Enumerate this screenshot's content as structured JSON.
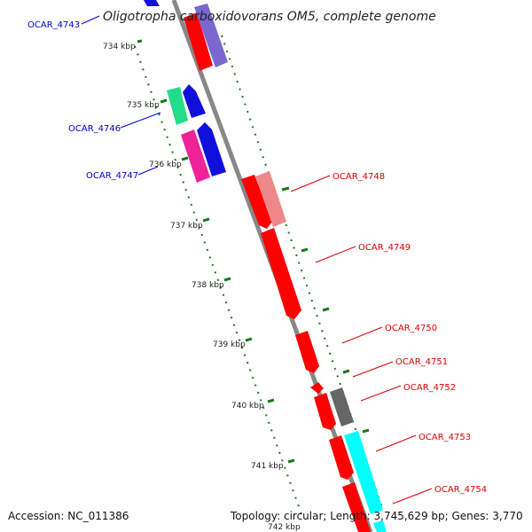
{
  "header": {
    "title": "Oligotropha carboxidovorans OM5, complete genome"
  },
  "footer": {
    "accession": "Accession: NC_011386",
    "summary": "Topology: circular; Length: 3,745,629 bp; Genes: 3,770"
  },
  "colors": {
    "backbone": "#888888",
    "tick": "#1a7a1a",
    "forward_label": "#0000cc",
    "reverse_label": "#dd0000"
  },
  "ticks": [
    {
      "label": "734 kbp"
    },
    {
      "label": "735 kbp"
    },
    {
      "label": "736 kbp"
    },
    {
      "label": "737 kbp"
    },
    {
      "label": "738 kbp"
    },
    {
      "label": "739 kbp"
    },
    {
      "label": "740 kbp"
    },
    {
      "label": "741 kbp"
    },
    {
      "label": "742 kbp"
    }
  ],
  "gene_labels": [
    {
      "text": "OCAR_4743",
      "strand": "forward"
    },
    {
      "text": "OCAR_4746",
      "strand": "forward"
    },
    {
      "text": "OCAR_4747",
      "strand": "forward"
    },
    {
      "text": "OCAR_4748",
      "strand": "reverse"
    },
    {
      "text": "OCAR_4749",
      "strand": "reverse"
    },
    {
      "text": "OCAR_4750",
      "strand": "reverse"
    },
    {
      "text": "OCAR_4751",
      "strand": "reverse"
    },
    {
      "text": "OCAR_4752",
      "strand": "reverse"
    },
    {
      "text": "OCAR_4753",
      "strand": "reverse"
    },
    {
      "text": "OCAR_4754",
      "strand": "reverse"
    }
  ]
}
